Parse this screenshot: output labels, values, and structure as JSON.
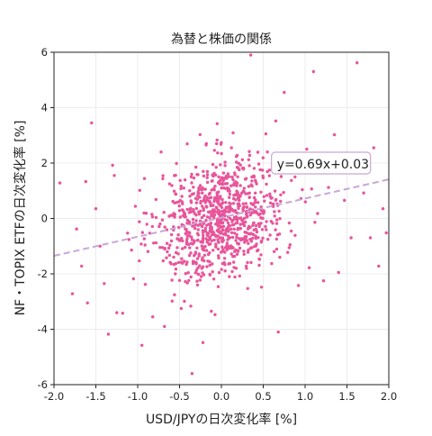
{
  "chart_data": {
    "type": "scatter",
    "title": "為替と株価の関係",
    "xlabel": "USD/JPYの日次変化率 [%]",
    "ylabel": "NF・TOPIX ETFの日次変化率 [%]",
    "xlim": [
      -2.0,
      2.0
    ],
    "ylim": [
      -6,
      6
    ],
    "xticks": [
      -2.0,
      -1.5,
      -1.0,
      -0.5,
      0.0,
      0.5,
      1.0,
      1.5,
      2.0
    ],
    "xtick_labels": [
      "-2.0",
      "-1.5",
      "-1.0",
      "-0.5",
      "0.0",
      "0.5",
      "1.0",
      "1.5",
      "2.0"
    ],
    "yticks": [
      -6,
      -4,
      -2,
      0,
      2,
      4,
      6
    ],
    "ytick_labels": [
      "-6",
      "-4",
      "-2",
      "0",
      "2",
      "4",
      "6"
    ],
    "grid": true,
    "point_color": "#e8559a",
    "fit_line": {
      "slope": 0.69,
      "intercept": 0.03,
      "color": "#c9a6d8",
      "style": "dashed"
    },
    "annotation": {
      "text": "y=0.69x+0.03",
      "x": 0.62,
      "y": 2.0
    },
    "series": [
      {
        "values": [
          [
            -1.93,
            1.28
          ],
          [
            -1.73,
            -0.38
          ],
          [
            -1.78,
            -2.72
          ],
          [
            -1.67,
            -1.72
          ],
          [
            -1.6,
            -3.05
          ],
          [
            -1.62,
            1.33
          ],
          [
            -1.55,
            3.45
          ],
          [
            -1.5,
            0.35
          ],
          [
            -1.45,
            -1.0
          ],
          [
            -1.4,
            -2.35
          ],
          [
            -1.35,
            -4.18
          ],
          [
            -1.3,
            1.92
          ],
          [
            -1.28,
            1.55
          ],
          [
            -1.25,
            -3.4
          ],
          [
            -1.18,
            -3.42
          ],
          [
            -1.12,
            -0.53
          ],
          [
            -1.05,
            -2.18
          ],
          [
            -0.95,
            -4.58
          ],
          [
            -0.98,
            -0.12
          ],
          [
            -0.91,
            -2.38
          ],
          [
            -0.82,
            -3.55
          ],
          [
            -0.72,
            2.4
          ],
          [
            -0.68,
            -3.9
          ],
          [
            -0.65,
            -0.9
          ],
          [
            -0.62,
            1.25
          ],
          [
            -0.55,
            -2.0
          ],
          [
            -0.48,
            -3.25
          ],
          [
            -0.43,
            -2.28
          ],
          [
            -0.38,
            -0.52
          ],
          [
            -0.35,
            -5.6
          ],
          [
            -0.32,
            0.18
          ],
          [
            -0.28,
            1.58
          ],
          [
            -0.22,
            -4.48
          ],
          [
            -0.18,
            2.7
          ],
          [
            -0.12,
            -3.35
          ],
          [
            -0.05,
            3.42
          ],
          [
            0.05,
            -1.05
          ],
          [
            0.12,
            2.55
          ],
          [
            0.18,
            0.85
          ],
          [
            0.25,
            2.12
          ],
          [
            0.3,
            -1.8
          ],
          [
            0.35,
            5.9
          ],
          [
            0.42,
            1.25
          ],
          [
            0.48,
            -2.48
          ],
          [
            0.55,
            2.4
          ],
          [
            0.62,
            0.52
          ],
          [
            0.65,
            3.52
          ],
          [
            0.68,
            -4.1
          ],
          [
            0.75,
            4.55
          ],
          [
            0.82,
            -0.95
          ],
          [
            0.88,
            1.5
          ],
          [
            0.92,
            -2.42
          ],
          [
            0.95,
            0.72
          ],
          [
            1.02,
            2.5
          ],
          [
            1.05,
            -1.78
          ],
          [
            1.1,
            5.3
          ],
          [
            1.15,
            0.18
          ],
          [
            1.22,
            -2.25
          ],
          [
            1.28,
            1.12
          ],
          [
            1.35,
            3.02
          ],
          [
            1.4,
            -1.95
          ],
          [
            1.47,
            0.65
          ],
          [
            1.55,
            -0.7
          ],
          [
            1.62,
            5.62
          ],
          [
            1.7,
            0.92
          ],
          [
            1.78,
            -0.7
          ],
          [
            1.82,
            2.55
          ],
          [
            1.88,
            -1.72
          ],
          [
            1.93,
            0.35
          ],
          [
            1.97,
            -0.52
          ]
        ]
      }
    ],
    "point_cloud": {
      "count": 900,
      "x_mean": 0.0,
      "x_std": 0.38,
      "residual_std": 1.05
    }
  }
}
